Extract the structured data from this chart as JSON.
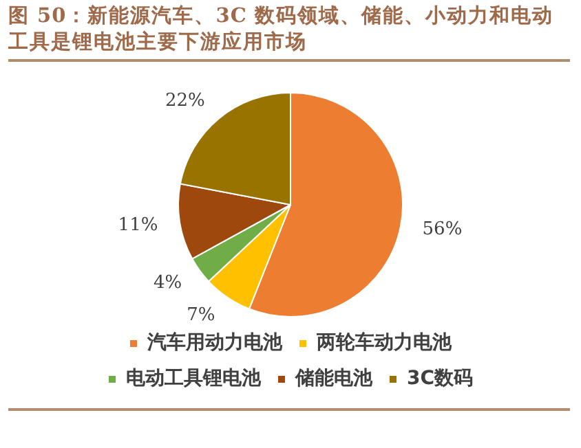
{
  "chart_data": {
    "type": "pie",
    "title": "图 50：新能源汽车、3C 数码领域、储能、小动力和电动工具是锂电池主要下游应用市场",
    "categories": [
      "汽车用动力电池",
      "两轮车动力电池",
      "电动工具锂电池",
      "储能电池",
      "3C数码"
    ],
    "values": [
      56,
      7,
      4,
      11,
      22
    ],
    "colors": [
      "#ed7d31",
      "#ffc000",
      "#70ad47",
      "#9e480e",
      "#997300"
    ],
    "value_labels": [
      "56%",
      "7%",
      "4%",
      "11%",
      "22%"
    ],
    "legend": "bottom"
  }
}
